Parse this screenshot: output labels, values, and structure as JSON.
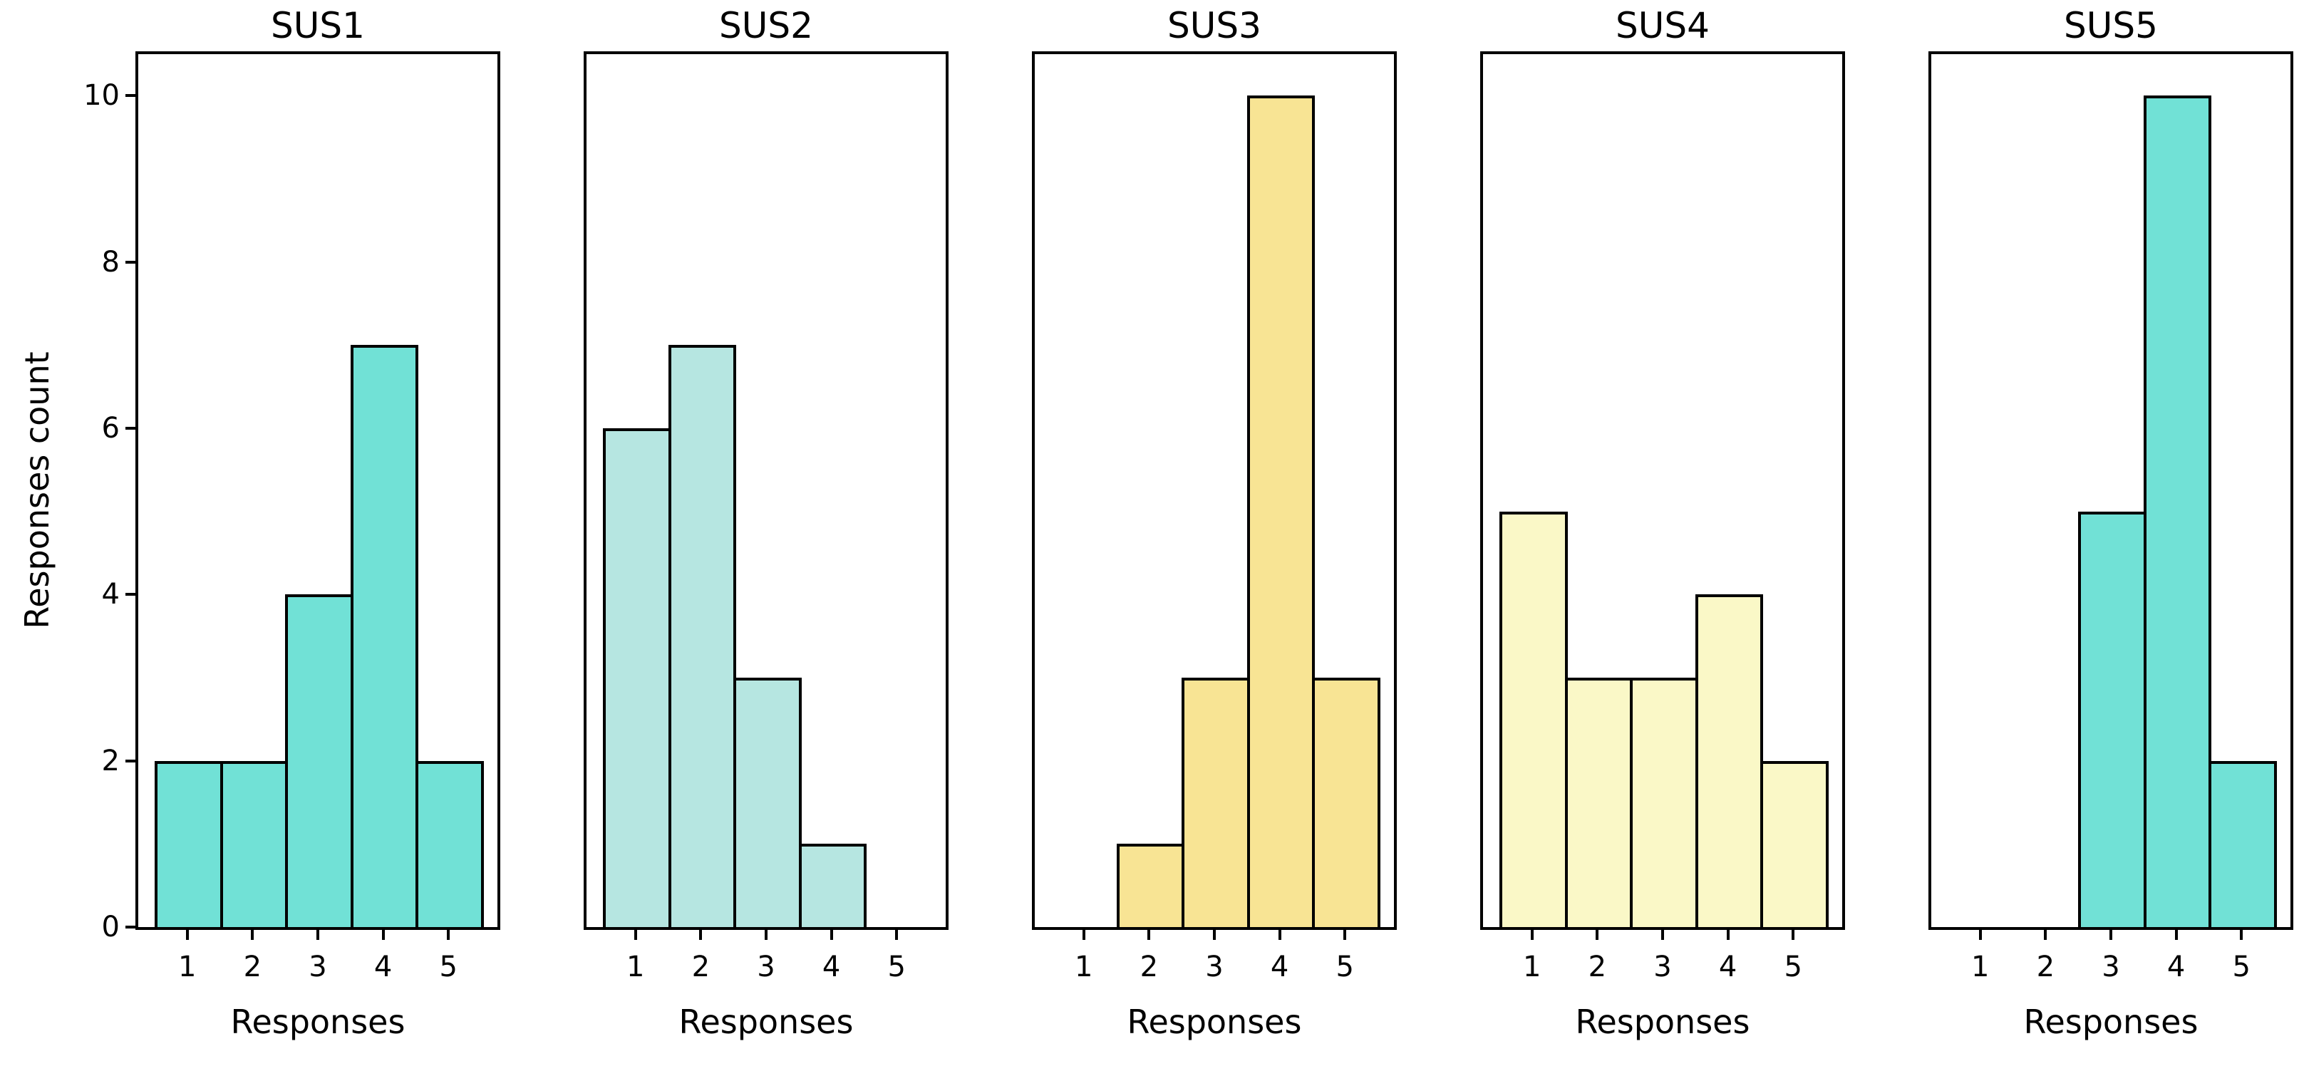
{
  "figure": {
    "background": "#ffffff",
    "text_color": "#000000",
    "axis_color": "#000000",
    "ylabel": "Responses count"
  },
  "chart_data": [
    {
      "type": "bar",
      "title": "SUS1",
      "categories": [
        "1",
        "2",
        "3",
        "4",
        "5"
      ],
      "values": [
        2,
        2,
        4,
        7,
        2
      ],
      "bar_color": "#71e1d6",
      "edge_color": "#000000",
      "xlabel": "Responses",
      "ylabel": "Responses count",
      "xlim": [
        0.25,
        5.75
      ],
      "ylim": [
        0,
        10.5
      ],
      "yticks": [
        0,
        2,
        4,
        6,
        8,
        10
      ],
      "ytick_labels": [
        "0",
        "2",
        "4",
        "6",
        "8",
        "10"
      ],
      "show_y_axis": true,
      "grid": false,
      "legend": "none"
    },
    {
      "type": "bar",
      "title": "SUS2",
      "categories": [
        "1",
        "2",
        "3",
        "4",
        "5"
      ],
      "values": [
        6,
        7,
        3,
        1,
        0
      ],
      "bar_color": "#b6e6e1",
      "edge_color": "#000000",
      "xlabel": "Responses",
      "xlim": [
        0.25,
        5.75
      ],
      "ylim": [
        0,
        10.5
      ],
      "yticks": [
        0,
        2,
        4,
        6,
        8,
        10
      ],
      "show_y_axis": false,
      "grid": false,
      "legend": "none"
    },
    {
      "type": "bar",
      "title": "SUS3",
      "categories": [
        "1",
        "2",
        "3",
        "4",
        "5"
      ],
      "values": [
        0,
        1,
        3,
        10,
        3
      ],
      "bar_color": "#f8e494",
      "edge_color": "#000000",
      "xlabel": "Responses",
      "xlim": [
        0.25,
        5.75
      ],
      "ylim": [
        0,
        10.5
      ],
      "yticks": [
        0,
        2,
        4,
        6,
        8,
        10
      ],
      "show_y_axis": false,
      "grid": false,
      "legend": "none"
    },
    {
      "type": "bar",
      "title": "SUS4",
      "categories": [
        "1",
        "2",
        "3",
        "4",
        "5"
      ],
      "values": [
        5,
        3,
        3,
        4,
        2
      ],
      "bar_color": "#faf8c7",
      "edge_color": "#000000",
      "xlabel": "Responses",
      "xlim": [
        0.25,
        5.75
      ],
      "ylim": [
        0,
        10.5
      ],
      "yticks": [
        0,
        2,
        4,
        6,
        8,
        10
      ],
      "show_y_axis": false,
      "grid": false,
      "legend": "none"
    },
    {
      "type": "bar",
      "title": "SUS5",
      "categories": [
        "1",
        "2",
        "3",
        "4",
        "5"
      ],
      "values": [
        0,
        0,
        5,
        10,
        2
      ],
      "bar_color": "#71e1d6",
      "edge_color": "#000000",
      "xlabel": "Responses",
      "xlim": [
        0.25,
        5.75
      ],
      "ylim": [
        0,
        10.5
      ],
      "yticks": [
        0,
        2,
        4,
        6,
        8,
        10
      ],
      "show_y_axis": false,
      "grid": false,
      "legend": "none"
    }
  ]
}
